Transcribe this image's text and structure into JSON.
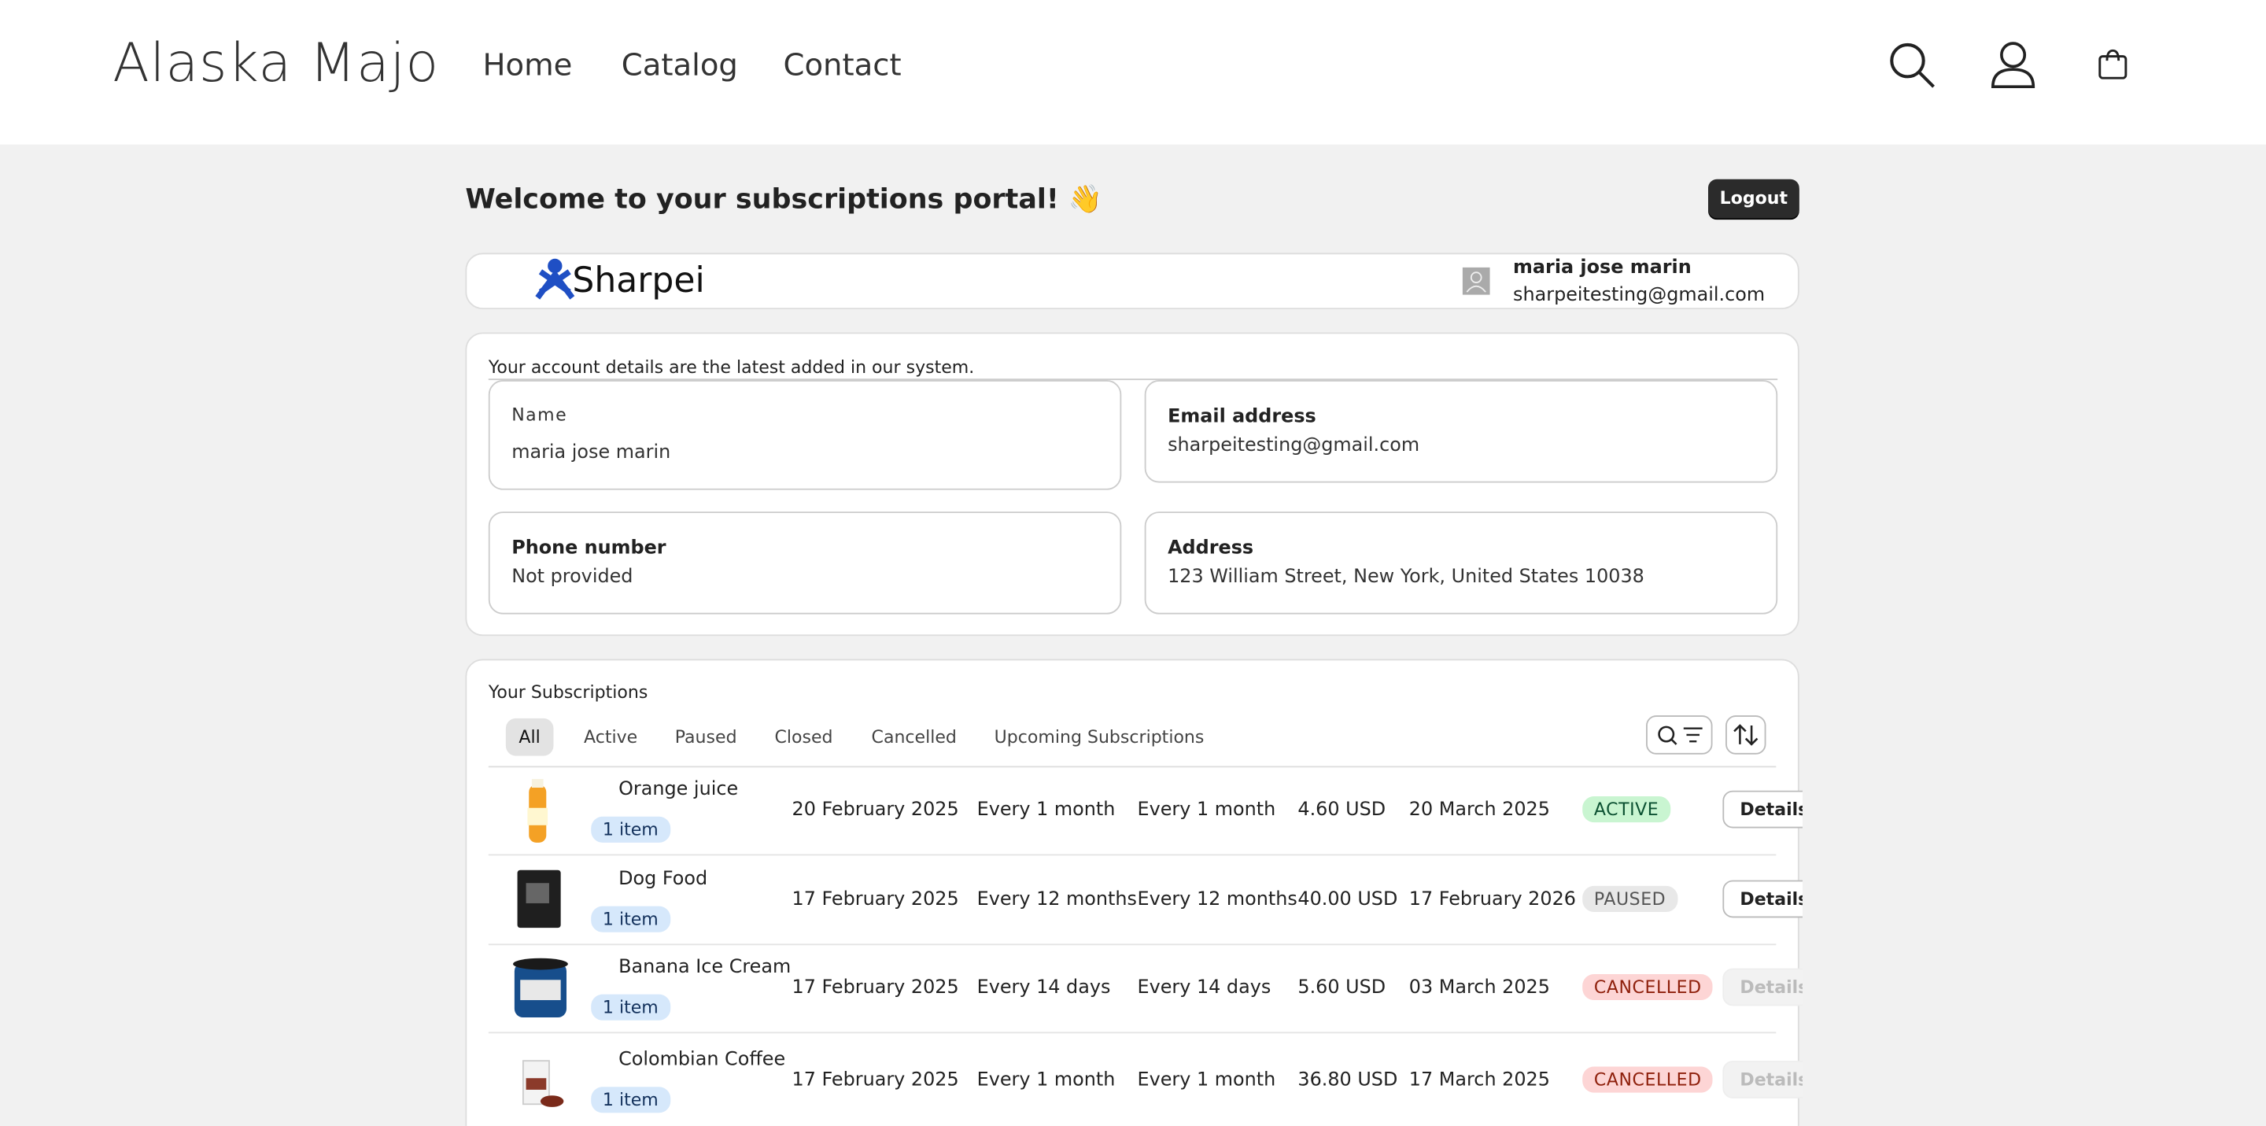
{
  "header": {
    "brand": "Alaska Majo",
    "nav": [
      "Home",
      "Catalog",
      "Contact"
    ]
  },
  "portal": {
    "title": "Welcome to your subscriptions portal! 👋",
    "logout": "Logout",
    "logo": "Sharpei",
    "user_name": "maria jose marin",
    "user_email": "sharpeitesting@gmail.com"
  },
  "account": {
    "note": "Your account details are the latest added in our system.",
    "fields": [
      {
        "label": "Name",
        "value": "maria jose marin"
      },
      {
        "label": "Email address",
        "value": "sharpeitesting@gmail.com"
      },
      {
        "label": "Phone number",
        "value": "Not provided"
      },
      {
        "label": "Address",
        "value": "123 William Street, New York, United States 10038"
      }
    ]
  },
  "subscriptions": {
    "title": "Your Subscriptions",
    "tabs": [
      "All",
      "Active",
      "Paused",
      "Closed",
      "Cancelled",
      "Upcoming Subscriptions"
    ],
    "rows": [
      [
        "Orange juice",
        "1 item",
        "20 February 2025",
        "Every 1 month",
        "Every 1 month",
        "4.60 USD",
        "20 March 2025",
        "ACTIVE",
        "Details"
      ],
      [
        "Dog Food",
        "1 item",
        "17 February 2025",
        "Every 12 months",
        "Every 12 months",
        "40.00 USD",
        "17 February 2026",
        "PAUSED",
        "Details"
      ],
      [
        "Banana Ice Cream",
        "1 item",
        "17 February 2025",
        "Every 14 days",
        "Every 14 days",
        "5.60 USD",
        "03 March 2025",
        "CANCELLED",
        "Details"
      ],
      [
        "Colombian Coffee",
        "1 item",
        "17 February 2025",
        "Every 1 month",
        "Every 1 month",
        "36.80 USD",
        "17 March 2025",
        "CANCELLED",
        "Details"
      ]
    ]
  }
}
